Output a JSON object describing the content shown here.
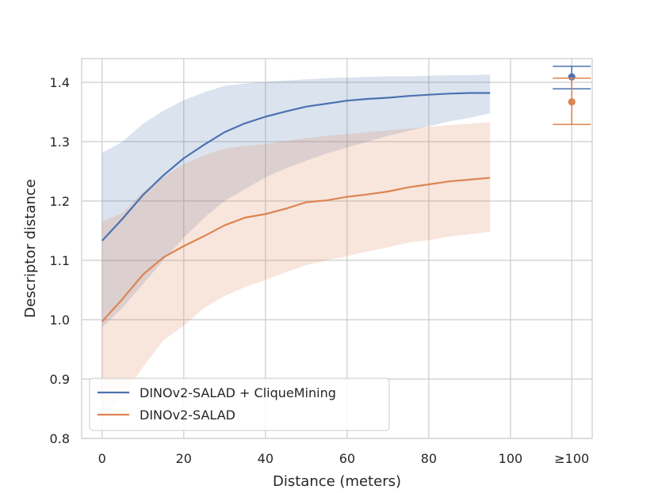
{
  "chart_data": {
    "type": "line",
    "title": "",
    "xlabel": "Distance (meters)",
    "ylabel": "Descriptor distance",
    "xlim": [
      -5,
      120
    ],
    "ylim": [
      0.8,
      1.44
    ],
    "x_ticks": [
      {
        "value": 0,
        "label": "0"
      },
      {
        "value": 20,
        "label": "20"
      },
      {
        "value": 40,
        "label": "40"
      },
      {
        "value": 60,
        "label": "60"
      },
      {
        "value": 80,
        "label": "80"
      },
      {
        "value": 100,
        "label": "100"
      },
      {
        "value": 115,
        "label": "≥100"
      }
    ],
    "y_ticks": [
      {
        "value": 0.8,
        "label": "0.8"
      },
      {
        "value": 0.9,
        "label": "0.9"
      },
      {
        "value": 1.0,
        "label": "1.0"
      },
      {
        "value": 1.1,
        "label": "1.1"
      },
      {
        "value": 1.2,
        "label": "1.2"
      },
      {
        "value": 1.3,
        "label": "1.3"
      },
      {
        "value": 1.4,
        "label": "1.4"
      }
    ],
    "grid": true,
    "legend_position": "lower-left",
    "x": [
      0,
      5,
      10,
      15,
      20,
      25,
      30,
      35,
      40,
      45,
      50,
      55,
      60,
      65,
      70,
      75,
      80,
      85,
      90,
      95
    ],
    "series": [
      {
        "name": "DINOv2-SALAD + CliqueMining",
        "color": "#4c72b0",
        "values": [
          1.133,
          1.17,
          1.21,
          1.243,
          1.272,
          1.295,
          1.316,
          1.331,
          1.342,
          1.351,
          1.359,
          1.364,
          1.369,
          1.372,
          1.374,
          1.377,
          1.379,
          1.381,
          1.382,
          1.382
        ],
        "band_lower": [
          0.987,
          1.02,
          1.06,
          1.1,
          1.138,
          1.172,
          1.2,
          1.22,
          1.24,
          1.255,
          1.268,
          1.28,
          1.29,
          1.3,
          1.31,
          1.318,
          1.326,
          1.334,
          1.34,
          1.348
        ],
        "band_upper": [
          1.281,
          1.3,
          1.33,
          1.352,
          1.37,
          1.383,
          1.394,
          1.398,
          1.401,
          1.403,
          1.405,
          1.407,
          1.408,
          1.409,
          1.41,
          1.41,
          1.411,
          1.412,
          1.412,
          1.413
        ],
        "summary_point": {
          "x": 115,
          "mean": 1.409,
          "lower": 1.389,
          "upper": 1.427
        }
      },
      {
        "name": "DINOv2-SALAD",
        "color": "#dd8452",
        "values": [
          0.997,
          1.035,
          1.076,
          1.105,
          1.124,
          1.141,
          1.159,
          1.172,
          1.178,
          1.187,
          1.198,
          1.201,
          1.207,
          1.211,
          1.216,
          1.223,
          1.228,
          1.233,
          1.236,
          1.239
        ],
        "band_lower": [
          0.832,
          0.87,
          0.92,
          0.965,
          0.99,
          1.02,
          1.04,
          1.055,
          1.067,
          1.08,
          1.092,
          1.1,
          1.107,
          1.115,
          1.122,
          1.13,
          1.134,
          1.14,
          1.144,
          1.148
        ],
        "band_upper": [
          1.165,
          1.18,
          1.215,
          1.24,
          1.262,
          1.277,
          1.288,
          1.293,
          1.296,
          1.301,
          1.306,
          1.31,
          1.313,
          1.316,
          1.319,
          1.322,
          1.325,
          1.328,
          1.33,
          1.333
        ],
        "summary_point": {
          "x": 115,
          "mean": 1.367,
          "lower": 1.329,
          "upper": 1.407
        }
      }
    ]
  }
}
